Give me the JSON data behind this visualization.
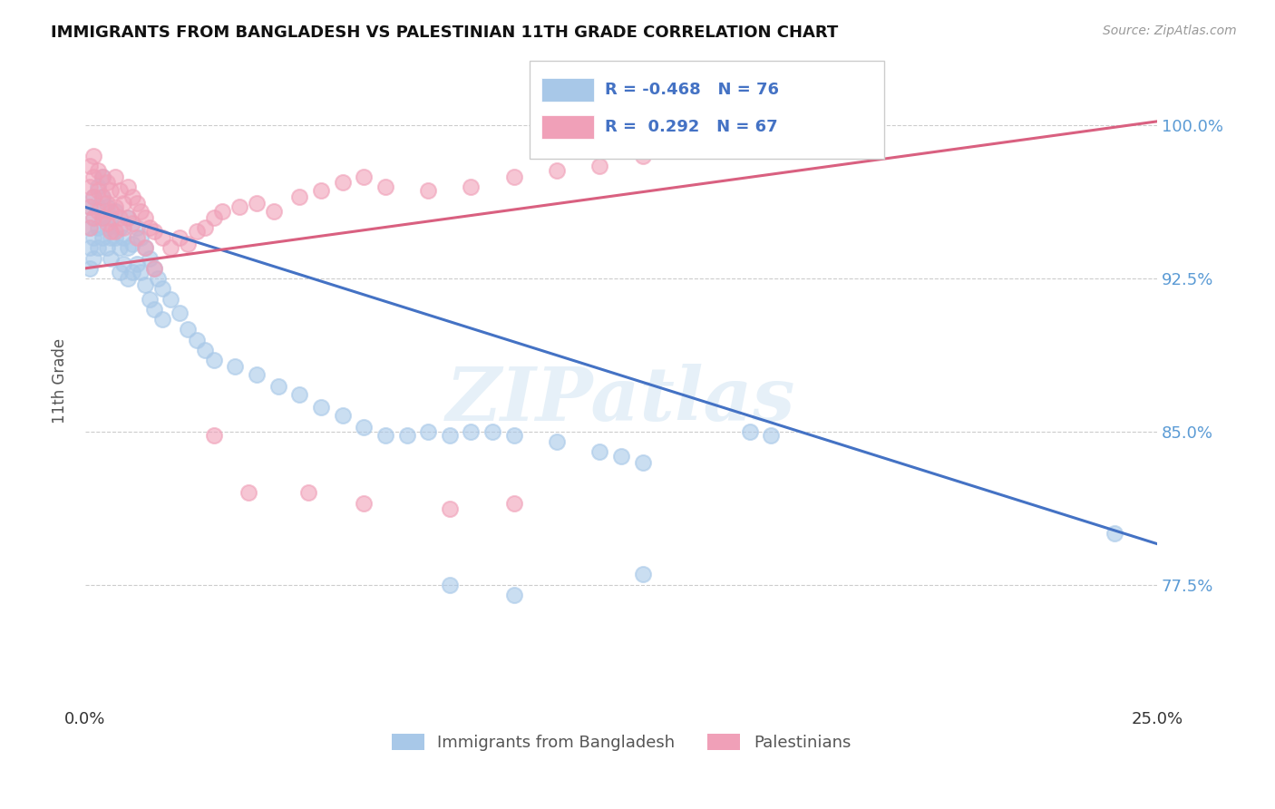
{
  "title": "IMMIGRANTS FROM BANGLADESH VS PALESTINIAN 11TH GRADE CORRELATION CHART",
  "source": "Source: ZipAtlas.com",
  "ylabel": "11th Grade",
  "ytick_labels": [
    "77.5%",
    "85.0%",
    "92.5%",
    "100.0%"
  ],
  "ytick_values": [
    0.775,
    0.85,
    0.925,
    1.0
  ],
  "xlim": [
    0.0,
    0.25
  ],
  "ylim": [
    0.715,
    1.035
  ],
  "legend_R_blue": "-0.468",
  "legend_N_blue": "76",
  "legend_R_pink": "0.292",
  "legend_N_pink": "67",
  "legend_label_blue": "Immigrants from Bangladesh",
  "legend_label_pink": "Palestinians",
  "color_blue": "#a8c8e8",
  "color_pink": "#f0a0b8",
  "color_blue_line": "#4472c4",
  "color_pink_line": "#d96080",
  "watermark": "ZIPatlas",
  "blue_scatter": [
    [
      0.001,
      0.96
    ],
    [
      0.001,
      0.95
    ],
    [
      0.001,
      0.94
    ],
    [
      0.001,
      0.93
    ],
    [
      0.002,
      0.965
    ],
    [
      0.002,
      0.955
    ],
    [
      0.002,
      0.945
    ],
    [
      0.002,
      0.935
    ],
    [
      0.003,
      0.97
    ],
    [
      0.003,
      0.96
    ],
    [
      0.003,
      0.95
    ],
    [
      0.003,
      0.94
    ],
    [
      0.004,
      0.975
    ],
    [
      0.004,
      0.965
    ],
    [
      0.004,
      0.955
    ],
    [
      0.004,
      0.945
    ],
    [
      0.005,
      0.96
    ],
    [
      0.005,
      0.95
    ],
    [
      0.005,
      0.94
    ],
    [
      0.006,
      0.955
    ],
    [
      0.006,
      0.945
    ],
    [
      0.006,
      0.935
    ],
    [
      0.007,
      0.958
    ],
    [
      0.007,
      0.945
    ],
    [
      0.008,
      0.95
    ],
    [
      0.008,
      0.94
    ],
    [
      0.008,
      0.928
    ],
    [
      0.009,
      0.945
    ],
    [
      0.009,
      0.932
    ],
    [
      0.01,
      0.955
    ],
    [
      0.01,
      0.94
    ],
    [
      0.01,
      0.925
    ],
    [
      0.011,
      0.942
    ],
    [
      0.011,
      0.928
    ],
    [
      0.012,
      0.95
    ],
    [
      0.012,
      0.932
    ],
    [
      0.013,
      0.945
    ],
    [
      0.013,
      0.928
    ],
    [
      0.014,
      0.94
    ],
    [
      0.014,
      0.922
    ],
    [
      0.015,
      0.935
    ],
    [
      0.015,
      0.915
    ],
    [
      0.016,
      0.93
    ],
    [
      0.016,
      0.91
    ],
    [
      0.017,
      0.925
    ],
    [
      0.018,
      0.92
    ],
    [
      0.018,
      0.905
    ],
    [
      0.02,
      0.915
    ],
    [
      0.022,
      0.908
    ],
    [
      0.024,
      0.9
    ],
    [
      0.026,
      0.895
    ],
    [
      0.028,
      0.89
    ],
    [
      0.03,
      0.885
    ],
    [
      0.035,
      0.882
    ],
    [
      0.04,
      0.878
    ],
    [
      0.045,
      0.872
    ],
    [
      0.05,
      0.868
    ],
    [
      0.055,
      0.862
    ],
    [
      0.06,
      0.858
    ],
    [
      0.065,
      0.852
    ],
    [
      0.07,
      0.848
    ],
    [
      0.075,
      0.848
    ],
    [
      0.08,
      0.85
    ],
    [
      0.085,
      0.848
    ],
    [
      0.09,
      0.85
    ],
    [
      0.095,
      0.85
    ],
    [
      0.1,
      0.848
    ],
    [
      0.11,
      0.845
    ],
    [
      0.12,
      0.84
    ],
    [
      0.125,
      0.838
    ],
    [
      0.13,
      0.835
    ],
    [
      0.085,
      0.775
    ],
    [
      0.1,
      0.77
    ],
    [
      0.13,
      0.78
    ],
    [
      0.155,
      0.85
    ],
    [
      0.16,
      0.848
    ],
    [
      0.24,
      0.8
    ]
  ],
  "pink_scatter": [
    [
      0.001,
      0.98
    ],
    [
      0.001,
      0.97
    ],
    [
      0.001,
      0.96
    ],
    [
      0.001,
      0.95
    ],
    [
      0.002,
      0.985
    ],
    [
      0.002,
      0.975
    ],
    [
      0.002,
      0.965
    ],
    [
      0.002,
      0.955
    ],
    [
      0.003,
      0.978
    ],
    [
      0.003,
      0.968
    ],
    [
      0.003,
      0.958
    ],
    [
      0.004,
      0.975
    ],
    [
      0.004,
      0.965
    ],
    [
      0.004,
      0.955
    ],
    [
      0.005,
      0.972
    ],
    [
      0.005,
      0.962
    ],
    [
      0.005,
      0.952
    ],
    [
      0.006,
      0.968
    ],
    [
      0.006,
      0.958
    ],
    [
      0.006,
      0.948
    ],
    [
      0.007,
      0.975
    ],
    [
      0.007,
      0.96
    ],
    [
      0.007,
      0.948
    ],
    [
      0.008,
      0.968
    ],
    [
      0.008,
      0.955
    ],
    [
      0.009,
      0.962
    ],
    [
      0.009,
      0.95
    ],
    [
      0.01,
      0.97
    ],
    [
      0.01,
      0.955
    ],
    [
      0.011,
      0.965
    ],
    [
      0.011,
      0.952
    ],
    [
      0.012,
      0.962
    ],
    [
      0.012,
      0.945
    ],
    [
      0.013,
      0.958
    ],
    [
      0.014,
      0.955
    ],
    [
      0.014,
      0.94
    ],
    [
      0.015,
      0.95
    ],
    [
      0.016,
      0.948
    ],
    [
      0.016,
      0.93
    ],
    [
      0.018,
      0.945
    ],
    [
      0.02,
      0.94
    ],
    [
      0.022,
      0.945
    ],
    [
      0.024,
      0.942
    ],
    [
      0.026,
      0.948
    ],
    [
      0.028,
      0.95
    ],
    [
      0.03,
      0.955
    ],
    [
      0.032,
      0.958
    ],
    [
      0.036,
      0.96
    ],
    [
      0.04,
      0.962
    ],
    [
      0.044,
      0.958
    ],
    [
      0.05,
      0.965
    ],
    [
      0.055,
      0.968
    ],
    [
      0.06,
      0.972
    ],
    [
      0.065,
      0.975
    ],
    [
      0.07,
      0.97
    ],
    [
      0.08,
      0.968
    ],
    [
      0.09,
      0.97
    ],
    [
      0.1,
      0.975
    ],
    [
      0.11,
      0.978
    ],
    [
      0.12,
      0.98
    ],
    [
      0.13,
      0.985
    ],
    [
      0.03,
      0.848
    ],
    [
      0.038,
      0.82
    ],
    [
      0.052,
      0.82
    ],
    [
      0.065,
      0.815
    ],
    [
      0.085,
      0.812
    ],
    [
      0.1,
      0.815
    ]
  ],
  "blue_trendline": [
    [
      0.0,
      0.96
    ],
    [
      0.25,
      0.795
    ]
  ],
  "pink_trendline": [
    [
      0.0,
      0.93
    ],
    [
      0.25,
      1.002
    ]
  ]
}
